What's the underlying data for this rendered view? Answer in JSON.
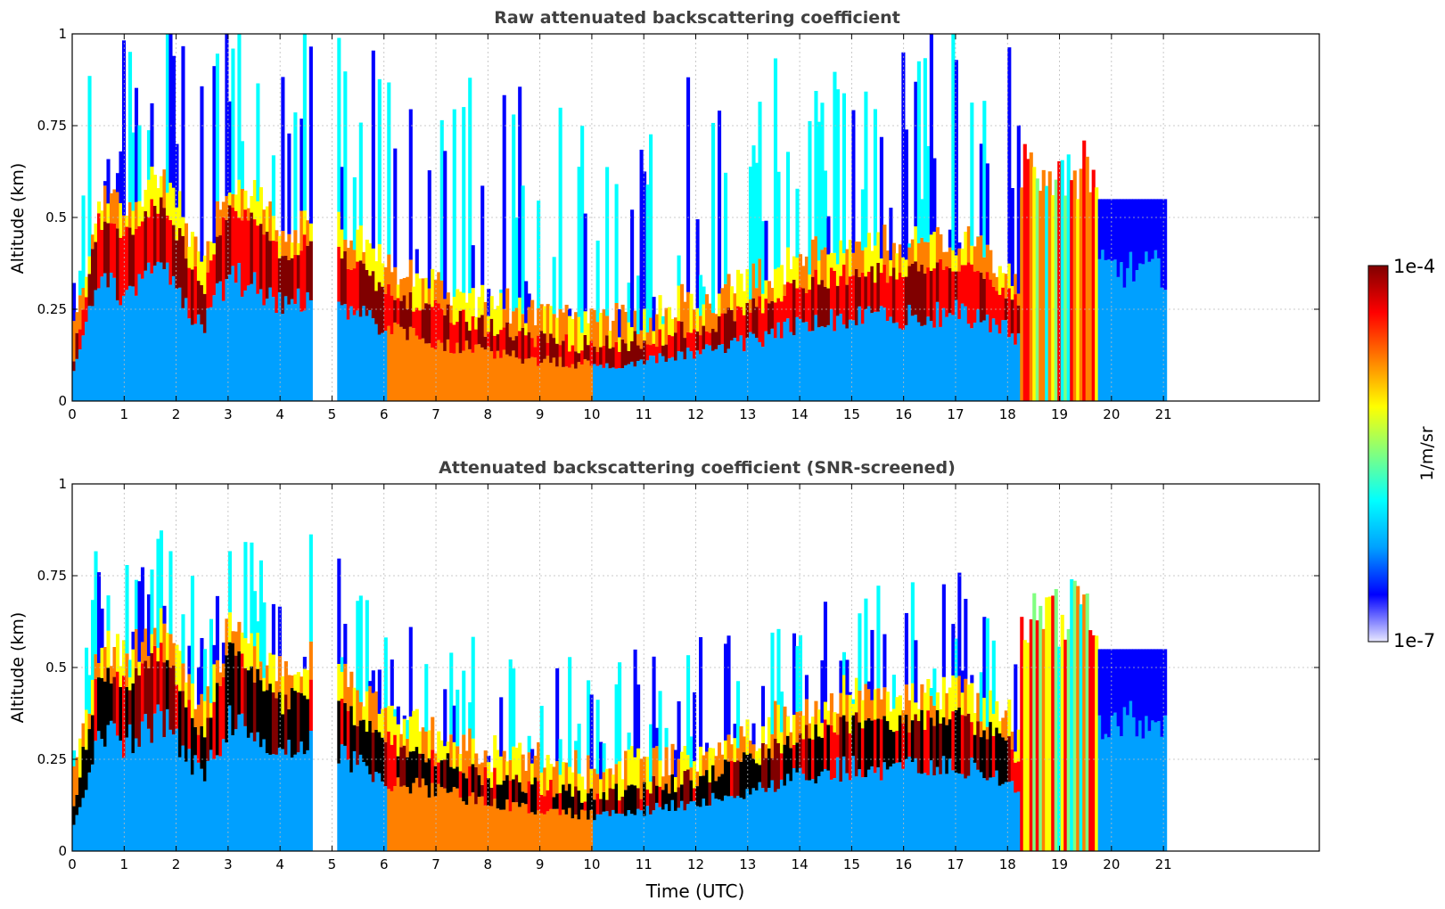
{
  "chart_data": [
    {
      "type": "heatmap",
      "title": "Raw attenuated backscattering coefficient",
      "xlabel": "",
      "ylabel": "Altitude (km)",
      "xlim": [
        0,
        24
      ],
      "ylim": [
        0,
        1
      ],
      "xticks": [
        0,
        1,
        2,
        3,
        4,
        5,
        6,
        7,
        8,
        9,
        10,
        11,
        12,
        13,
        14,
        15,
        16,
        17,
        18,
        19,
        20,
        21
      ],
      "xtick_labels": [
        "0",
        "1",
        "2",
        "3",
        "4",
        "5",
        "6",
        "7",
        "8",
        "9",
        "10",
        "11",
        "12",
        "13",
        "14",
        "15",
        "16",
        "17",
        "18",
        "19",
        "20",
        "21"
      ],
      "yticks": [
        0,
        0.25,
        0.5,
        0.75,
        1
      ],
      "ytick_labels": [
        "0",
        "0.25",
        "0.5",
        "0.75",
        "1"
      ],
      "grid": true,
      "data_gaps_utc": [
        [
          4.6,
          5.05
        ]
      ],
      "data_end_utc": 21,
      "layer_top_km": [
        [
          0,
          0.12
        ],
        [
          0.5,
          0.5
        ],
        [
          1,
          0.45
        ],
        [
          1.7,
          0.55
        ],
        [
          2.5,
          0.3
        ],
        [
          3,
          0.55
        ],
        [
          4,
          0.4
        ],
        [
          4.6,
          0.45
        ],
        [
          5.1,
          0.4
        ],
        [
          6,
          0.3
        ],
        [
          7,
          0.25
        ],
        [
          8,
          0.2
        ],
        [
          9,
          0.17
        ],
        [
          10,
          0.15
        ],
        [
          11,
          0.17
        ],
        [
          12,
          0.2
        ],
        [
          13,
          0.25
        ],
        [
          14,
          0.32
        ],
        [
          15,
          0.35
        ],
        [
          16,
          0.35
        ],
        [
          17,
          0.37
        ],
        [
          18,
          0.3
        ],
        [
          18.2,
          0.25
        ]
      ]
    },
    {
      "type": "heatmap",
      "title": "Attenuated backscattering coefficient (SNR-screened)",
      "xlabel": "Time (UTC)",
      "ylabel": "Altitude (km)",
      "xlim": [
        0,
        24
      ],
      "ylim": [
        0,
        1
      ],
      "xticks": [
        0,
        1,
        2,
        3,
        4,
        5,
        6,
        7,
        8,
        9,
        10,
        11,
        12,
        13,
        14,
        15,
        16,
        17,
        18,
        19,
        20,
        21
      ],
      "xtick_labels": [
        "0",
        "1",
        "2",
        "3",
        "4",
        "5",
        "6",
        "7",
        "8",
        "9",
        "10",
        "11",
        "12",
        "13",
        "14",
        "15",
        "16",
        "17",
        "18",
        "19",
        "20",
        "21"
      ],
      "yticks": [
        0,
        0.25,
        0.5,
        0.75,
        1
      ],
      "ytick_labels": [
        "0",
        "0.25",
        "0.5",
        "0.75",
        "1"
      ],
      "grid": true,
      "data_gaps_utc": [
        [
          4.6,
          5.05
        ]
      ],
      "data_end_utc": 21
    }
  ],
  "colorbar": {
    "label": "1/m/sr",
    "min_label": "1e-7",
    "max_label": "1e-4",
    "scale": "log",
    "colormap": [
      "#e8e8ff",
      "#0000ff",
      "#00a0ff",
      "#00ffff",
      "#80ff80",
      "#ffff00",
      "#ff8000",
      "#ff0000",
      "#800000"
    ]
  }
}
